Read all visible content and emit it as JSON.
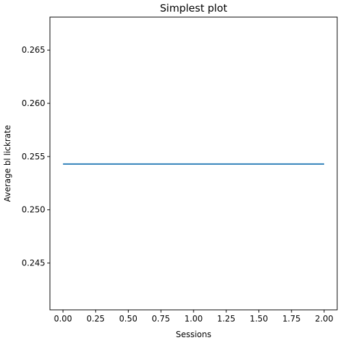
{
  "chart_data": {
    "type": "line",
    "title": "Simplest plot",
    "xlabel": "Sessions",
    "ylabel": "Average bl lickrate",
    "xlim": [
      -0.1,
      2.1
    ],
    "ylim": [
      0.2406,
      0.2681
    ],
    "xticks": [
      "0.00",
      "0.25",
      "0.50",
      "0.75",
      "1.00",
      "1.25",
      "1.50",
      "1.75",
      "2.00"
    ],
    "yticks": [
      "0.245",
      "0.250",
      "0.255",
      "0.260",
      "0.265"
    ],
    "grid": false,
    "series": [
      {
        "color": "#1f77b4",
        "x": [
          0,
          1,
          2
        ],
        "y": [
          0.2543,
          0.2543,
          0.2543
        ]
      }
    ]
  }
}
